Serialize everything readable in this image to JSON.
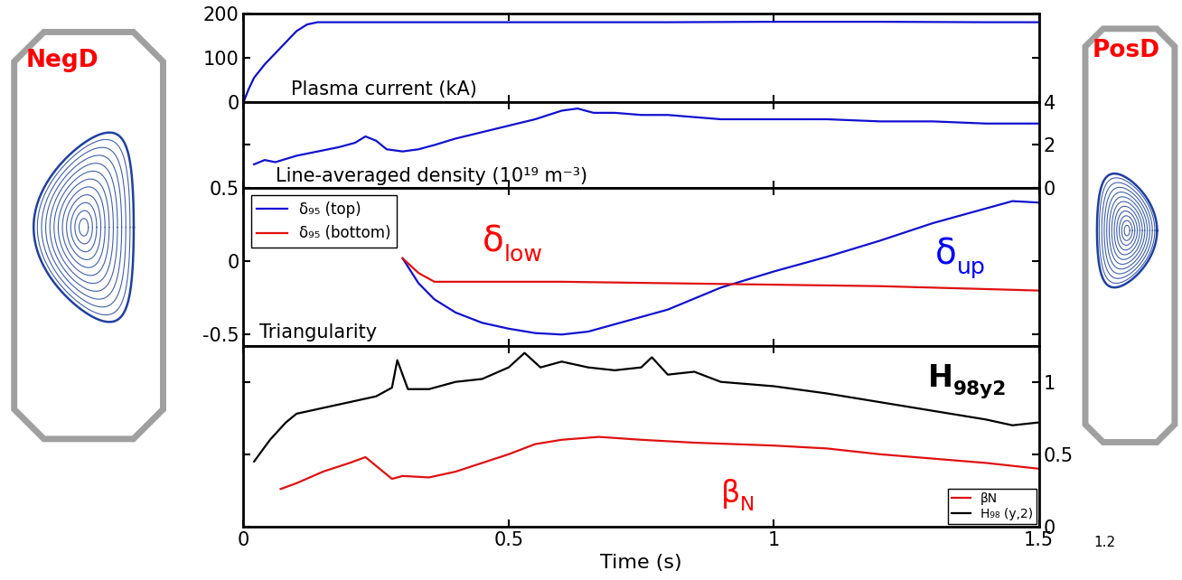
{
  "chart_data": [
    {
      "type": "line",
      "xlim": [
        0,
        1.5
      ],
      "xticks": [
        0,
        0.5,
        1,
        1.5
      ],
      "tick_labels": "y",
      "ylim": [
        0,
        200
      ],
      "yticks": [
        0,
        100,
        200
      ],
      "annotations": [
        {
          "text": "Plasma current (kA)",
          "color": "#000000"
        }
      ],
      "series": [
        {
          "color": "#1010d0",
          "x": [
            0,
            0.01,
            0.02,
            0.04,
            0.06,
            0.08,
            0.1,
            0.12,
            0.14,
            0.2,
            0.4,
            0.6,
            0.8,
            1.0,
            1.2,
            1.4,
            1.5
          ],
          "values": [
            0,
            30,
            55,
            85,
            110,
            135,
            160,
            175,
            180,
            180,
            180,
            180,
            180,
            181,
            181,
            180,
            180
          ]
        }
      ]
    },
    {
      "type": "line",
      "xlim": [
        0,
        1.5
      ],
      "xticks": [
        0,
        0.5,
        1,
        1.5
      ],
      "tick_labels": "y",
      "y2lim": [
        0,
        4
      ],
      "y2ticks": [
        0,
        2,
        4
      ],
      "annotations": [
        {
          "text": "Line-averaged density (10¹⁹ m⁻³)",
          "color": "#000000"
        }
      ],
      "series": [
        {
          "color": "#1010d0",
          "axis": "y2",
          "x": [
            0.02,
            0.04,
            0.06,
            0.1,
            0.14,
            0.18,
            0.21,
            0.23,
            0.25,
            0.27,
            0.3,
            0.33,
            0.36,
            0.4,
            0.45,
            0.5,
            0.55,
            0.6,
            0.63,
            0.66,
            0.7,
            0.75,
            0.8,
            0.9,
            1.0,
            1.1,
            1.2,
            1.3,
            1.4,
            1.5
          ],
          "values": [
            1.1,
            1.3,
            1.2,
            1.5,
            1.7,
            1.9,
            2.1,
            2.4,
            2.2,
            1.8,
            1.7,
            1.8,
            2.0,
            2.3,
            2.6,
            2.9,
            3.2,
            3.6,
            3.7,
            3.5,
            3.5,
            3.4,
            3.4,
            3.2,
            3.2,
            3.2,
            3.1,
            3.1,
            3.0,
            3.0
          ]
        }
      ]
    },
    {
      "type": "line",
      "xlim": [
        0,
        1.5
      ],
      "xticks": [
        0,
        0.5,
        1,
        1.5
      ],
      "tick_labels": "y",
      "ylim": [
        -0.58,
        0.5
      ],
      "yticks": [
        -0.5,
        0,
        0.5
      ],
      "legend": "upper left",
      "annotations": [
        {
          "text": "Triangularity",
          "color": "#000000"
        },
        {
          "text": "δ",
          "subscript": "low",
          "color": "#ff0000"
        },
        {
          "text": "δ",
          "subscript": "up",
          "color": "#0000ff"
        }
      ],
      "series": [
        {
          "name": "δ₉₅ (top)",
          "color": "#1010d0",
          "x": [
            0.3,
            0.33,
            0.36,
            0.4,
            0.45,
            0.5,
            0.55,
            0.6,
            0.65,
            0.7,
            0.8,
            0.9,
            1.0,
            1.1,
            1.2,
            1.3,
            1.4,
            1.45,
            1.5
          ],
          "values": [
            0.02,
            -0.15,
            -0.26,
            -0.35,
            -0.42,
            -0.46,
            -0.49,
            -0.5,
            -0.48,
            -0.43,
            -0.33,
            -0.18,
            -0.07,
            0.03,
            0.14,
            0.26,
            0.36,
            0.41,
            0.4
          ]
        },
        {
          "name": "δ₉₅ (bottom)",
          "color": "#e01010",
          "x": [
            0.3,
            0.33,
            0.36,
            0.4,
            0.6,
            0.8,
            1.0,
            1.2,
            1.4,
            1.5
          ],
          "values": [
            0.02,
            -0.08,
            -0.14,
            -0.14,
            -0.14,
            -0.15,
            -0.16,
            -0.17,
            -0.19,
            -0.2
          ]
        }
      ]
    },
    {
      "type": "line",
      "xlim": [
        0,
        1.5
      ],
      "xticks": [
        0,
        0.5,
        1,
        1.5
      ],
      "xlabel": "Time (s)",
      "y2lim": [
        0,
        1.25
      ],
      "y2ticks": [
        0,
        0.5,
        1
      ],
      "legend": "lower right",
      "annotations": [
        {
          "text": "H",
          "subscript": "98y2",
          "color": "#000000"
        },
        {
          "text": "β",
          "subscript": "N",
          "color": "#ff0000"
        }
      ],
      "series": [
        {
          "name": "βN",
          "color": "#e01010",
          "axis": "y2",
          "x": [
            0.07,
            0.1,
            0.15,
            0.2,
            0.23,
            0.25,
            0.28,
            0.3,
            0.35,
            0.4,
            0.45,
            0.5,
            0.55,
            0.6,
            0.67,
            0.75,
            0.85,
            1.0,
            1.1,
            1.2,
            1.3,
            1.4,
            1.5
          ],
          "values": [
            0.26,
            0.3,
            0.38,
            0.44,
            0.48,
            0.42,
            0.33,
            0.35,
            0.34,
            0.38,
            0.44,
            0.5,
            0.57,
            0.6,
            0.62,
            0.6,
            0.58,
            0.56,
            0.54,
            0.5,
            0.47,
            0.44,
            0.4
          ]
        },
        {
          "name": "H₉₈ (y,2)",
          "color": "#000000",
          "axis": "y2",
          "x": [
            0.02,
            0.05,
            0.08,
            0.1,
            0.15,
            0.2,
            0.25,
            0.28,
            0.29,
            0.31,
            0.35,
            0.4,
            0.45,
            0.5,
            0.53,
            0.56,
            0.6,
            0.65,
            0.7,
            0.75,
            0.77,
            0.8,
            0.85,
            0.9,
            1.0,
            1.1,
            1.2,
            1.3,
            1.4,
            1.45,
            1.5
          ],
          "values": [
            0.45,
            0.6,
            0.72,
            0.78,
            0.82,
            0.86,
            0.9,
            0.96,
            1.15,
            0.95,
            0.95,
            1.0,
            1.02,
            1.1,
            1.2,
            1.1,
            1.14,
            1.1,
            1.08,
            1.1,
            1.17,
            1.05,
            1.07,
            1.0,
            0.97,
            0.92,
            0.86,
            0.8,
            0.74,
            0.7,
            0.72
          ]
        }
      ]
    }
  ],
  "shape_labels": [
    "NegD",
    "PosD"
  ],
  "fragment_text": "1.2"
}
